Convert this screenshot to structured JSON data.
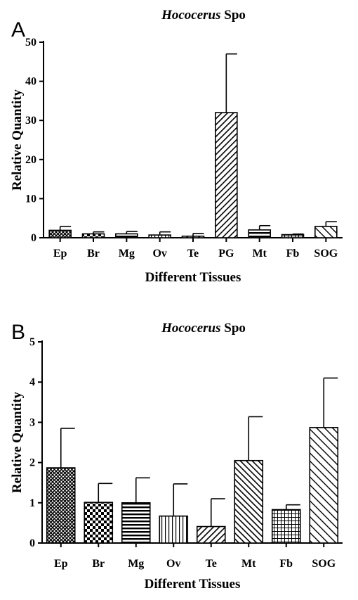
{
  "figure": {
    "panels": [
      {
        "letter": "A",
        "title_italic": "Hococerus",
        "title_rest": " Spo"
      },
      {
        "letter": "B",
        "title_italic": "Hococerus",
        "title_rest": " Spo"
      }
    ]
  },
  "chart_data": [
    {
      "type": "bar",
      "title": "Hococerus Spo",
      "xlabel": "Different Tissues",
      "ylabel": "Relative Quantity",
      "ylim": [
        0,
        50
      ],
      "yticks": [
        0,
        10,
        20,
        30,
        40,
        50
      ],
      "categories": [
        "Ep",
        "Br",
        "Mg",
        "Ov",
        "Te",
        "PG",
        "Mt",
        "Fb",
        "SOG"
      ],
      "values": [
        1.9,
        1.0,
        1.0,
        0.7,
        0.4,
        32,
        2.0,
        0.8,
        2.9
      ],
      "errors": [
        1.0,
        0.5,
        0.6,
        0.8,
        0.7,
        15,
        1.1,
        0.15,
        1.2
      ],
      "patterns": [
        "crosshatch",
        "checker",
        "hlines",
        "vlines",
        "diag-right",
        "diag-right",
        "hlines",
        "grid",
        "diag-wide"
      ],
      "grid": false,
      "legend": "none"
    },
    {
      "type": "bar",
      "title": "Hococerus Spo",
      "xlabel": "Different Tissues",
      "ylabel": "Relative Quantity",
      "ylim": [
        0,
        5
      ],
      "yticks": [
        0,
        1,
        2,
        3,
        4,
        5
      ],
      "categories": [
        "Ep",
        "Br",
        "Mg",
        "Ov",
        "Te",
        "Mt",
        "Fb",
        "SOG"
      ],
      "values": [
        1.87,
        1.01,
        1.0,
        0.67,
        0.41,
        2.05,
        0.83,
        2.87
      ],
      "errors": [
        0.98,
        0.47,
        0.62,
        0.8,
        0.69,
        1.09,
        0.12,
        1.23
      ],
      "patterns": [
        "crosshatch",
        "checker",
        "hlines",
        "vlines",
        "diag-right",
        "diag-left",
        "grid",
        "diag-wide"
      ],
      "grid": false,
      "legend": "none"
    }
  ]
}
